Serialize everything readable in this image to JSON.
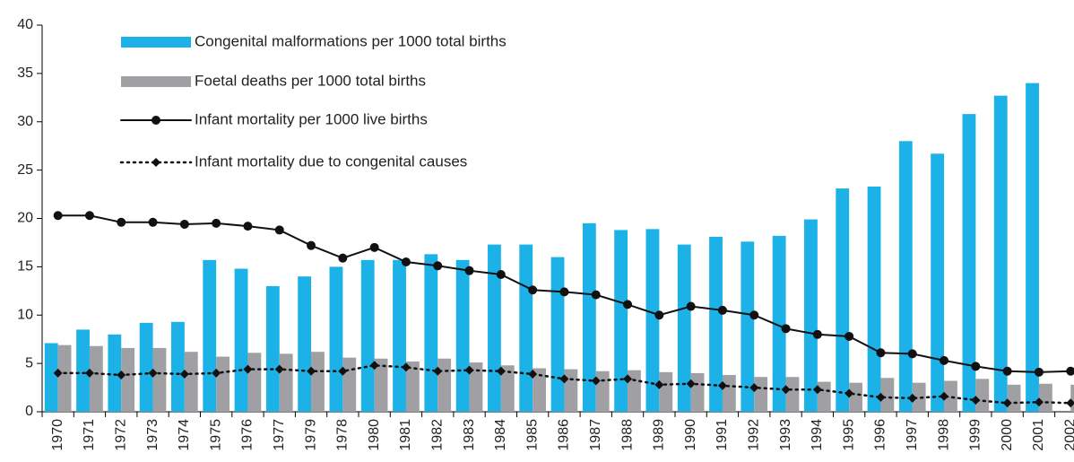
{
  "chart_data": {
    "type": "bar",
    "categories": [
      "1970",
      "1971",
      "1972",
      "1973",
      "1974",
      "1975",
      "1976",
      "1977",
      "1979",
      "1978",
      "1980",
      "1981",
      "1982",
      "1983",
      "1984",
      "1985",
      "1986",
      "1987",
      "1988",
      "1989",
      "1990",
      "1991",
      "1992",
      "1993",
      "1994",
      "1995",
      "1996",
      "1997",
      "1998",
      "1999",
      "2000",
      "2001",
      "2002"
    ],
    "series": [
      {
        "name": "Congenital malformations per 1000 total births",
        "type": "bar",
        "color": "#1cb2e8",
        "values": [
          7.1,
          8.5,
          8.0,
          9.2,
          9.3,
          15.7,
          14.8,
          13.0,
          14.0,
          15.0,
          15.7,
          15.7,
          16.3,
          15.7,
          17.3,
          17.3,
          16.0,
          19.5,
          18.8,
          18.9,
          17.3,
          18.1,
          17.6,
          18.2,
          19.9,
          23.1,
          23.3,
          28.0,
          26.7,
          30.8,
          32.7,
          34.0,
          null
        ]
      },
      {
        "name": "Foetal deaths per 1000 total births",
        "type": "bar",
        "color": "#a0a0a4",
        "values": [
          6.9,
          6.8,
          6.6,
          6.6,
          6.2,
          5.7,
          6.1,
          6.0,
          6.2,
          5.6,
          5.5,
          5.2,
          5.5,
          5.1,
          4.8,
          4.5,
          4.4,
          4.2,
          4.3,
          4.1,
          4.0,
          3.8,
          3.6,
          3.6,
          3.1,
          3.0,
          3.5,
          3.0,
          3.2,
          3.4,
          2.8,
          2.9,
          2.8
        ]
      },
      {
        "name": "Infant mortality per 1000 live births",
        "type": "line",
        "color": "#111111",
        "marker": "circle",
        "dash": "solid",
        "values": [
          20.3,
          20.3,
          19.6,
          19.6,
          19.4,
          19.5,
          19.2,
          18.8,
          17.2,
          15.9,
          17.0,
          15.5,
          15.1,
          14.6,
          14.2,
          12.6,
          12.4,
          12.1,
          11.1,
          10.0,
          10.9,
          10.5,
          10.0,
          8.6,
          8.0,
          7.8,
          6.1,
          6.0,
          5.3,
          4.7,
          4.2,
          4.1,
          4.2
        ]
      },
      {
        "name": "Infant mortality due to congenital causes",
        "type": "line",
        "color": "#111111",
        "marker": "diamond",
        "dash": "dotted",
        "values": [
          4.0,
          4.0,
          3.8,
          4.0,
          3.9,
          4.0,
          4.4,
          4.4,
          4.2,
          4.2,
          4.8,
          4.6,
          4.2,
          4.3,
          4.2,
          3.9,
          3.4,
          3.2,
          3.4,
          2.8,
          2.9,
          2.7,
          2.5,
          2.3,
          2.3,
          1.9,
          1.5,
          1.4,
          1.6,
          1.2,
          0.9,
          1.0,
          0.9
        ]
      }
    ],
    "ylim": [
      0,
      40
    ],
    "yticks": [
      0,
      5,
      10,
      15,
      20,
      25,
      30,
      35,
      40
    ],
    "grid": false,
    "legend": "upper left"
  }
}
